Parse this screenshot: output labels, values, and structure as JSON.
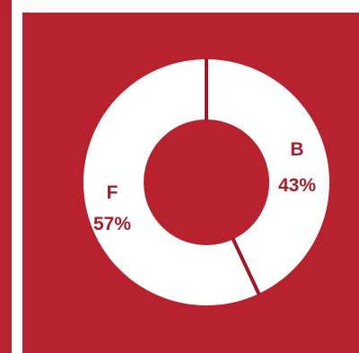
{
  "colors": {
    "panel": "#b8222e",
    "ring": "#ffffff",
    "divider": "#9c1a25",
    "label": "#a51e2b"
  },
  "chart_data": {
    "type": "pie",
    "variant": "donut",
    "slices": [
      {
        "label": "B",
        "value": 43,
        "value_text": "43%"
      },
      {
        "label": "F",
        "value": 57,
        "value_text": "57%"
      }
    ],
    "start_angle": "top",
    "direction": "clockwise"
  }
}
